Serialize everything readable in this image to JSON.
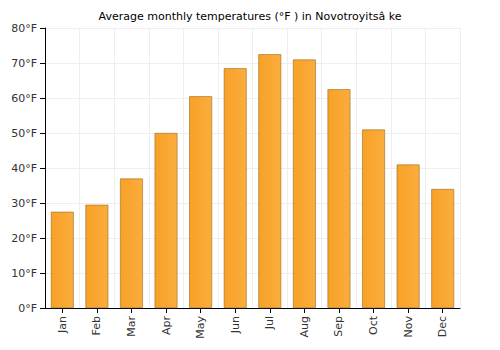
{
  "chart_data": {
    "type": "bar",
    "title": "Average monthly temperatures (°F ) in Novotroyitsâ ke",
    "categories": [
      "Jan",
      "Feb",
      "Mar",
      "Apr",
      "May",
      "Jun",
      "Jul",
      "Aug",
      "Sep",
      "Oct",
      "Nov",
      "Dec"
    ],
    "values": [
      27.5,
      29.5,
      37,
      50,
      60.5,
      68.5,
      72.5,
      71,
      62.5,
      51,
      41,
      34
    ],
    "color": "#fbad3c",
    "ylim": [
      0,
      80
    ],
    "yticks": [
      {
        "value": 0,
        "label": "0°F"
      },
      {
        "value": 10,
        "label": "10°F"
      },
      {
        "value": 20,
        "label": "20°F"
      },
      {
        "value": 30,
        "label": "30°F"
      },
      {
        "value": 40,
        "label": "40°F"
      },
      {
        "value": 50,
        "label": "50°F"
      },
      {
        "value": 60,
        "label": "60°F"
      },
      {
        "value": 70,
        "label": "70°F"
      },
      {
        "value": 80,
        "label": "80°F"
      }
    ],
    "grid": true
  }
}
